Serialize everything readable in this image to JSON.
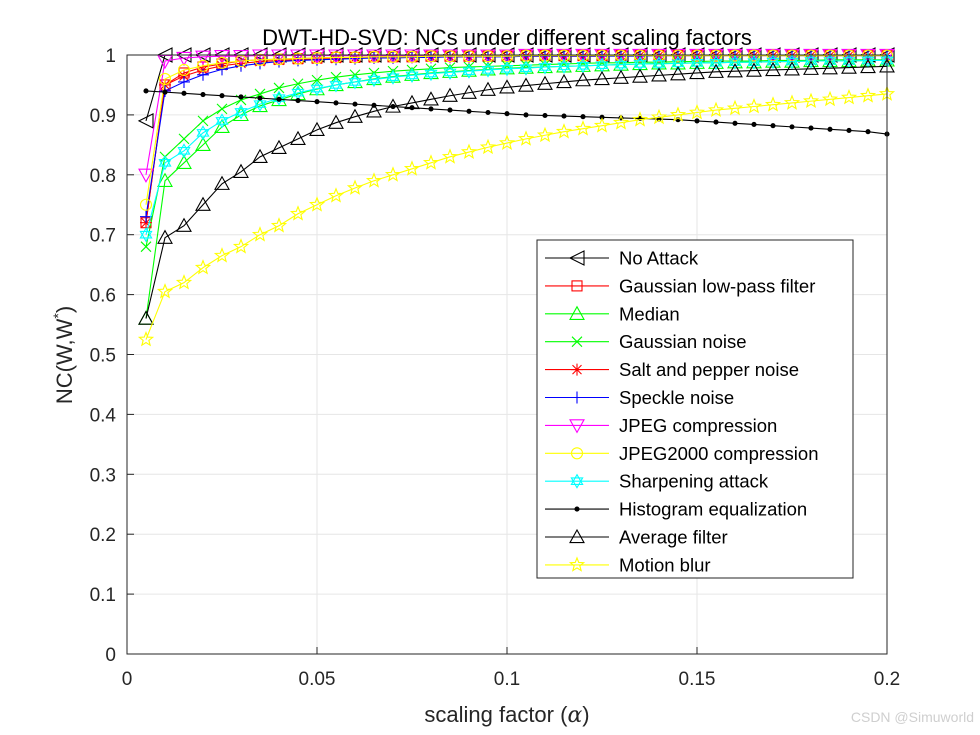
{
  "chart_data": {
    "type": "line",
    "title": "DWT-HD-SVD: NCs under different scaling factors",
    "xlabel": "scaling factor (",
    "xlabel_symbol": "α",
    "xlabel_close": ")",
    "ylabel": "NC(W,W",
    "ylabel_sup": "*",
    "ylabel_close": ")",
    "xlim": [
      0,
      0.2
    ],
    "ylim": [
      0,
      1
    ],
    "xticks": [
      "0",
      "0.05",
      "0.1",
      "0.15",
      "0.2"
    ],
    "yticks": [
      "0",
      "0.1",
      "0.2",
      "0.3",
      "0.4",
      "0.5",
      "0.6",
      "0.7",
      "0.8",
      "0.9",
      "1"
    ],
    "grid": true,
    "legend_position": "right-center",
    "x": [
      0.005,
      0.01,
      0.015,
      0.02,
      0.025,
      0.03,
      0.035,
      0.04,
      0.045,
      0.05,
      0.055,
      0.06,
      0.065,
      0.07,
      0.075,
      0.08,
      0.085,
      0.09,
      0.095,
      0.1,
      0.105,
      0.11,
      0.115,
      0.12,
      0.125,
      0.13,
      0.135,
      0.14,
      0.145,
      0.15,
      0.155,
      0.16,
      0.165,
      0.17,
      0.175,
      0.18,
      0.185,
      0.19,
      0.195,
      0.2
    ],
    "series": [
      {
        "name": "No Attack",
        "color": "#000000",
        "marker": "triangle-left",
        "values": [
          0.89,
          1,
          1,
          1,
          1,
          1,
          1,
          1,
          1,
          1,
          1,
          1,
          1,
          1,
          1,
          1,
          1,
          1,
          1,
          1,
          1,
          1,
          1,
          1,
          1,
          1,
          1,
          1,
          1,
          1,
          1,
          1,
          1,
          1,
          1,
          1,
          1,
          1,
          1,
          1
        ]
      },
      {
        "name": "Gaussian low-pass filter",
        "color": "#ff0000",
        "marker": "square",
        "values": [
          0.72,
          0.95,
          0.97,
          0.98,
          0.985,
          0.99,
          0.992,
          0.993,
          0.994,
          0.995,
          0.996,
          0.996,
          0.997,
          0.997,
          0.997,
          0.998,
          0.998,
          0.998,
          0.998,
          0.998,
          0.999,
          0.999,
          0.999,
          0.999,
          0.999,
          0.999,
          0.999,
          0.999,
          0.999,
          0.999,
          1,
          1,
          1,
          1,
          1,
          1,
          1,
          1,
          1,
          1
        ]
      },
      {
        "name": "Median",
        "color": "#00ff00",
        "marker": "triangle-up",
        "values": [
          0.56,
          0.79,
          0.82,
          0.85,
          0.88,
          0.9,
          0.915,
          0.925,
          0.935,
          0.943,
          0.95,
          0.955,
          0.96,
          0.964,
          0.967,
          0.97,
          0.972,
          0.974,
          0.976,
          0.978,
          0.979,
          0.98,
          0.981,
          0.982,
          0.983,
          0.984,
          0.985,
          0.986,
          0.986,
          0.987,
          0.987,
          0.988,
          0.988,
          0.989,
          0.989,
          0.99,
          0.99,
          0.99,
          0.991,
          0.991
        ]
      },
      {
        "name": "Gaussian noise",
        "color": "#00ff00",
        "marker": "x",
        "values": [
          0.68,
          0.83,
          0.86,
          0.89,
          0.91,
          0.925,
          0.935,
          0.945,
          0.952,
          0.958,
          0.963,
          0.967,
          0.97,
          0.973,
          0.975,
          0.977,
          0.979,
          0.98,
          0.981,
          0.982,
          0.983,
          0.984,
          0.985,
          0.986,
          0.987,
          0.987,
          0.988,
          0.988,
          0.989,
          0.989,
          0.99,
          0.99,
          0.99,
          0.991,
          0.991,
          0.991,
          0.992,
          0.992,
          0.992,
          0.992
        ]
      },
      {
        "name": "Salt and pepper noise",
        "color": "#ff0000",
        "marker": "asterisk",
        "values": [
          0.72,
          0.95,
          0.965,
          0.975,
          0.982,
          0.986,
          0.989,
          0.991,
          0.992,
          0.993,
          0.994,
          0.995,
          0.995,
          0.996,
          0.996,
          0.997,
          0.997,
          0.997,
          0.997,
          0.998,
          0.998,
          0.998,
          0.998,
          0.998,
          0.998,
          0.999,
          0.999,
          0.999,
          0.999,
          0.999,
          0.999,
          0.999,
          0.999,
          0.999,
          0.999,
          0.999,
          0.999,
          0.999,
          0.999,
          0.999
        ]
      },
      {
        "name": "Speckle noise",
        "color": "#0000ff",
        "marker": "plus",
        "values": [
          0.73,
          0.94,
          0.955,
          0.967,
          0.976,
          0.982,
          0.986,
          0.989,
          0.991,
          0.992,
          0.993,
          0.994,
          0.995,
          0.995,
          0.996,
          0.996,
          0.997,
          0.997,
          0.997,
          0.997,
          0.998,
          0.998,
          0.998,
          0.998,
          0.998,
          0.998,
          0.998,
          0.999,
          0.999,
          0.999,
          0.999,
          0.999,
          0.999,
          0.999,
          0.999,
          0.999,
          0.999,
          0.999,
          0.999,
          0.999
        ]
      },
      {
        "name": "JPEG compression",
        "color": "#ff00ff",
        "marker": "triangle-down",
        "values": [
          0.8,
          0.99,
          0.995,
          0.997,
          0.998,
          0.998,
          0.999,
          0.999,
          0.999,
          0.999,
          0.999,
          0.999,
          0.999,
          0.999,
          0.999,
          0.999,
          0.999,
          0.999,
          0.999,
          0.999,
          1,
          1,
          1,
          1,
          1,
          1,
          1,
          1,
          1,
          1,
          1,
          1,
          1,
          1,
          1,
          1,
          1,
          1,
          1,
          1
        ]
      },
      {
        "name": "JPEG2000 compression",
        "color": "#ffff00",
        "marker": "circle",
        "values": [
          0.75,
          0.96,
          0.975,
          0.982,
          0.987,
          0.99,
          0.992,
          0.993,
          0.994,
          0.995,
          0.996,
          0.996,
          0.997,
          0.997,
          0.997,
          0.998,
          0.998,
          0.998,
          0.998,
          0.998,
          0.999,
          0.999,
          0.999,
          0.999,
          0.999,
          0.999,
          0.999,
          0.999,
          0.999,
          0.999,
          0.999,
          0.999,
          0.999,
          0.999,
          0.999,
          0.999,
          0.999,
          0.999,
          0.999,
          0.999
        ]
      },
      {
        "name": "Sharpening attack",
        "color": "#00ffff",
        "marker": "hexagram",
        "values": [
          0.7,
          0.82,
          0.84,
          0.87,
          0.89,
          0.905,
          0.918,
          0.928,
          0.937,
          0.944,
          0.95,
          0.955,
          0.959,
          0.963,
          0.966,
          0.969,
          0.971,
          0.973,
          0.975,
          0.977,
          0.978,
          0.98,
          0.981,
          0.982,
          0.983,
          0.984,
          0.985,
          0.985,
          0.986,
          0.987,
          0.987,
          0.988,
          0.988,
          0.989,
          0.989,
          0.99,
          0.99,
          0.99,
          0.991,
          0.991
        ]
      },
      {
        "name": "Histogram equalization",
        "color": "#000000",
        "marker": "dot",
        "values": [
          0.94,
          0.938,
          0.936,
          0.934,
          0.932,
          0.93,
          0.928,
          0.926,
          0.924,
          0.922,
          0.92,
          0.918,
          0.916,
          0.914,
          0.912,
          0.91,
          0.908,
          0.906,
          0.904,
          0.902,
          0.9,
          0.899,
          0.898,
          0.897,
          0.896,
          0.895,
          0.894,
          0.893,
          0.892,
          0.89,
          0.888,
          0.886,
          0.884,
          0.882,
          0.88,
          0.878,
          0.876,
          0.874,
          0.872,
          0.868
        ]
      },
      {
        "name": "Average filter",
        "color": "#000000",
        "marker": "triangle-up-dark",
        "values": [
          0.56,
          0.695,
          0.715,
          0.75,
          0.785,
          0.805,
          0.83,
          0.845,
          0.86,
          0.875,
          0.887,
          0.897,
          0.906,
          0.914,
          0.92,
          0.926,
          0.932,
          0.937,
          0.942,
          0.946,
          0.949,
          0.952,
          0.955,
          0.958,
          0.96,
          0.962,
          0.964,
          0.966,
          0.968,
          0.97,
          0.972,
          0.973,
          0.974,
          0.975,
          0.976,
          0.977,
          0.978,
          0.979,
          0.98,
          0.981
        ]
      },
      {
        "name": "Motion blur",
        "color": "#ffff00",
        "marker": "pentagram",
        "values": [
          0.525,
          0.605,
          0.62,
          0.645,
          0.665,
          0.68,
          0.7,
          0.715,
          0.735,
          0.75,
          0.765,
          0.778,
          0.79,
          0.8,
          0.81,
          0.82,
          0.83,
          0.838,
          0.846,
          0.853,
          0.86,
          0.866,
          0.872,
          0.877,
          0.882,
          0.887,
          0.892,
          0.896,
          0.9,
          0.904,
          0.908,
          0.911,
          0.914,
          0.917,
          0.92,
          0.923,
          0.926,
          0.929,
          0.932,
          0.935
        ]
      }
    ]
  },
  "watermark": "CSDN @Simuworld"
}
